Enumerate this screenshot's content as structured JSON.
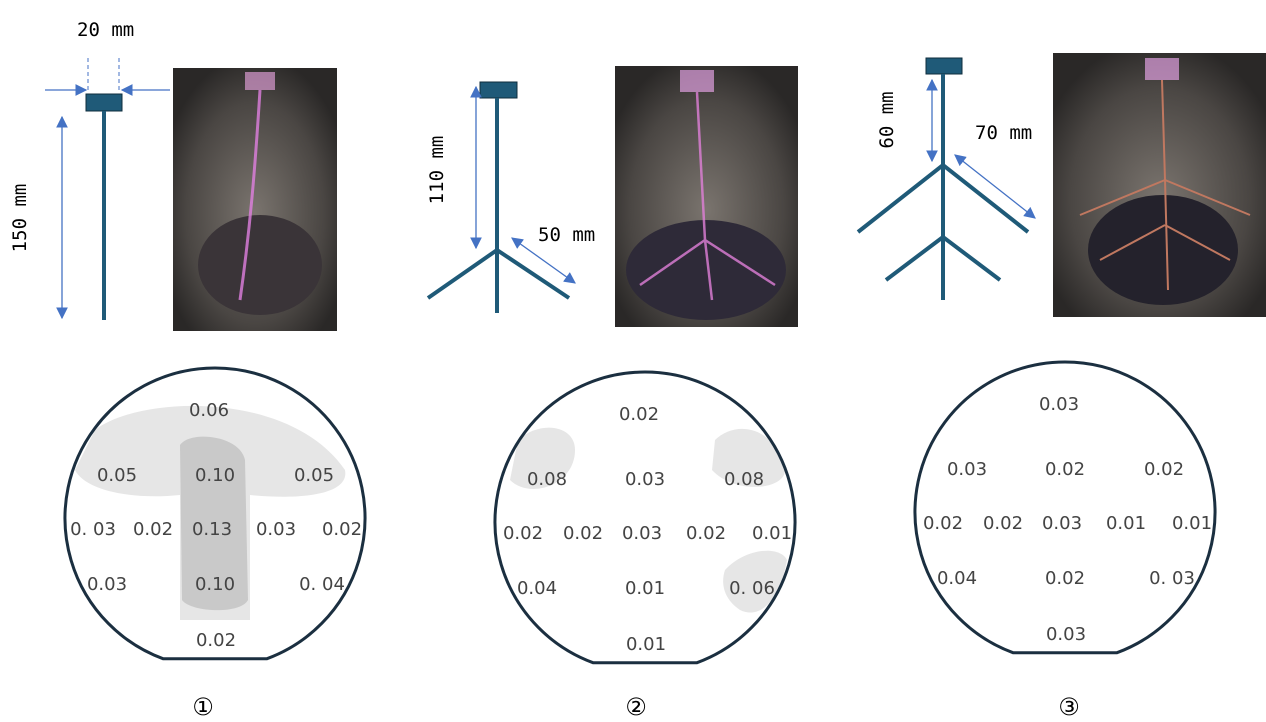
{
  "panels": [
    {
      "dimensions": [
        "20 mm",
        "150 mm"
      ],
      "label": "①",
      "wafer": [
        "0.06",
        "0.05",
        "0.10",
        "0.05",
        "0. 03",
        "0.02",
        "0.13",
        "0.03",
        "0.02",
        "0.03",
        "0.10",
        "0. 04",
        "0.02"
      ]
    },
    {
      "dimensions": [
        "110 mm",
        "50 mm"
      ],
      "label": "②",
      "wafer": [
        "0.02",
        "0.08",
        "0.03",
        "0.08",
        "0.02",
        "0.02",
        "0.03",
        "0.02",
        "0.01",
        "0.04",
        "0.01",
        "0. 06",
        "0.01"
      ]
    },
    {
      "dimensions": [
        "60 mm",
        "70 mm"
      ],
      "label": "③",
      "wafer": [
        "0.03",
        "0.03",
        "0.02",
        "0.02",
        "0.02",
        "0.02",
        "0.03",
        "0.01",
        "0.01",
        "0.04",
        "0.02",
        "0. 03",
        "0.03"
      ]
    }
  ]
}
